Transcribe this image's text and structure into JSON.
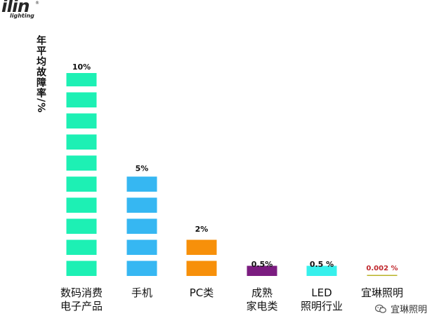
{
  "logo": {
    "word": "ilin",
    "sub": "lighting",
    "reg": "®"
  },
  "watermark": {
    "icon": "wechat-icon",
    "text": "宜琳照明"
  },
  "chart_data": {
    "type": "bar",
    "ylabel": "年平均故障率/%",
    "xlabel": "",
    "ylim": [
      0,
      10
    ],
    "grid": false,
    "categories": [
      [
        "数码消费",
        "电子产品"
      ],
      [
        "手机"
      ],
      [
        "PC类"
      ],
      [
        "成熟",
        "家电类"
      ],
      [
        "LED",
        "照明行业"
      ],
      [
        "宜琳照明"
      ]
    ],
    "values": [
      10,
      5,
      2,
      0.5,
      0.5,
      0.002
    ],
    "data_labels": [
      "10%",
      "5%",
      "2%",
      "0.5%",
      "0.5 %",
      "0.002 %"
    ],
    "colors": [
      "#1DF0B4",
      "#36B7F2",
      "#F7900A",
      "#7B1C80",
      "#36F0EC",
      "#B9B328"
    ],
    "label_colors": [
      "#111111",
      "#111111",
      "#111111",
      "#111111",
      "#111111",
      "#C0272D"
    ]
  }
}
